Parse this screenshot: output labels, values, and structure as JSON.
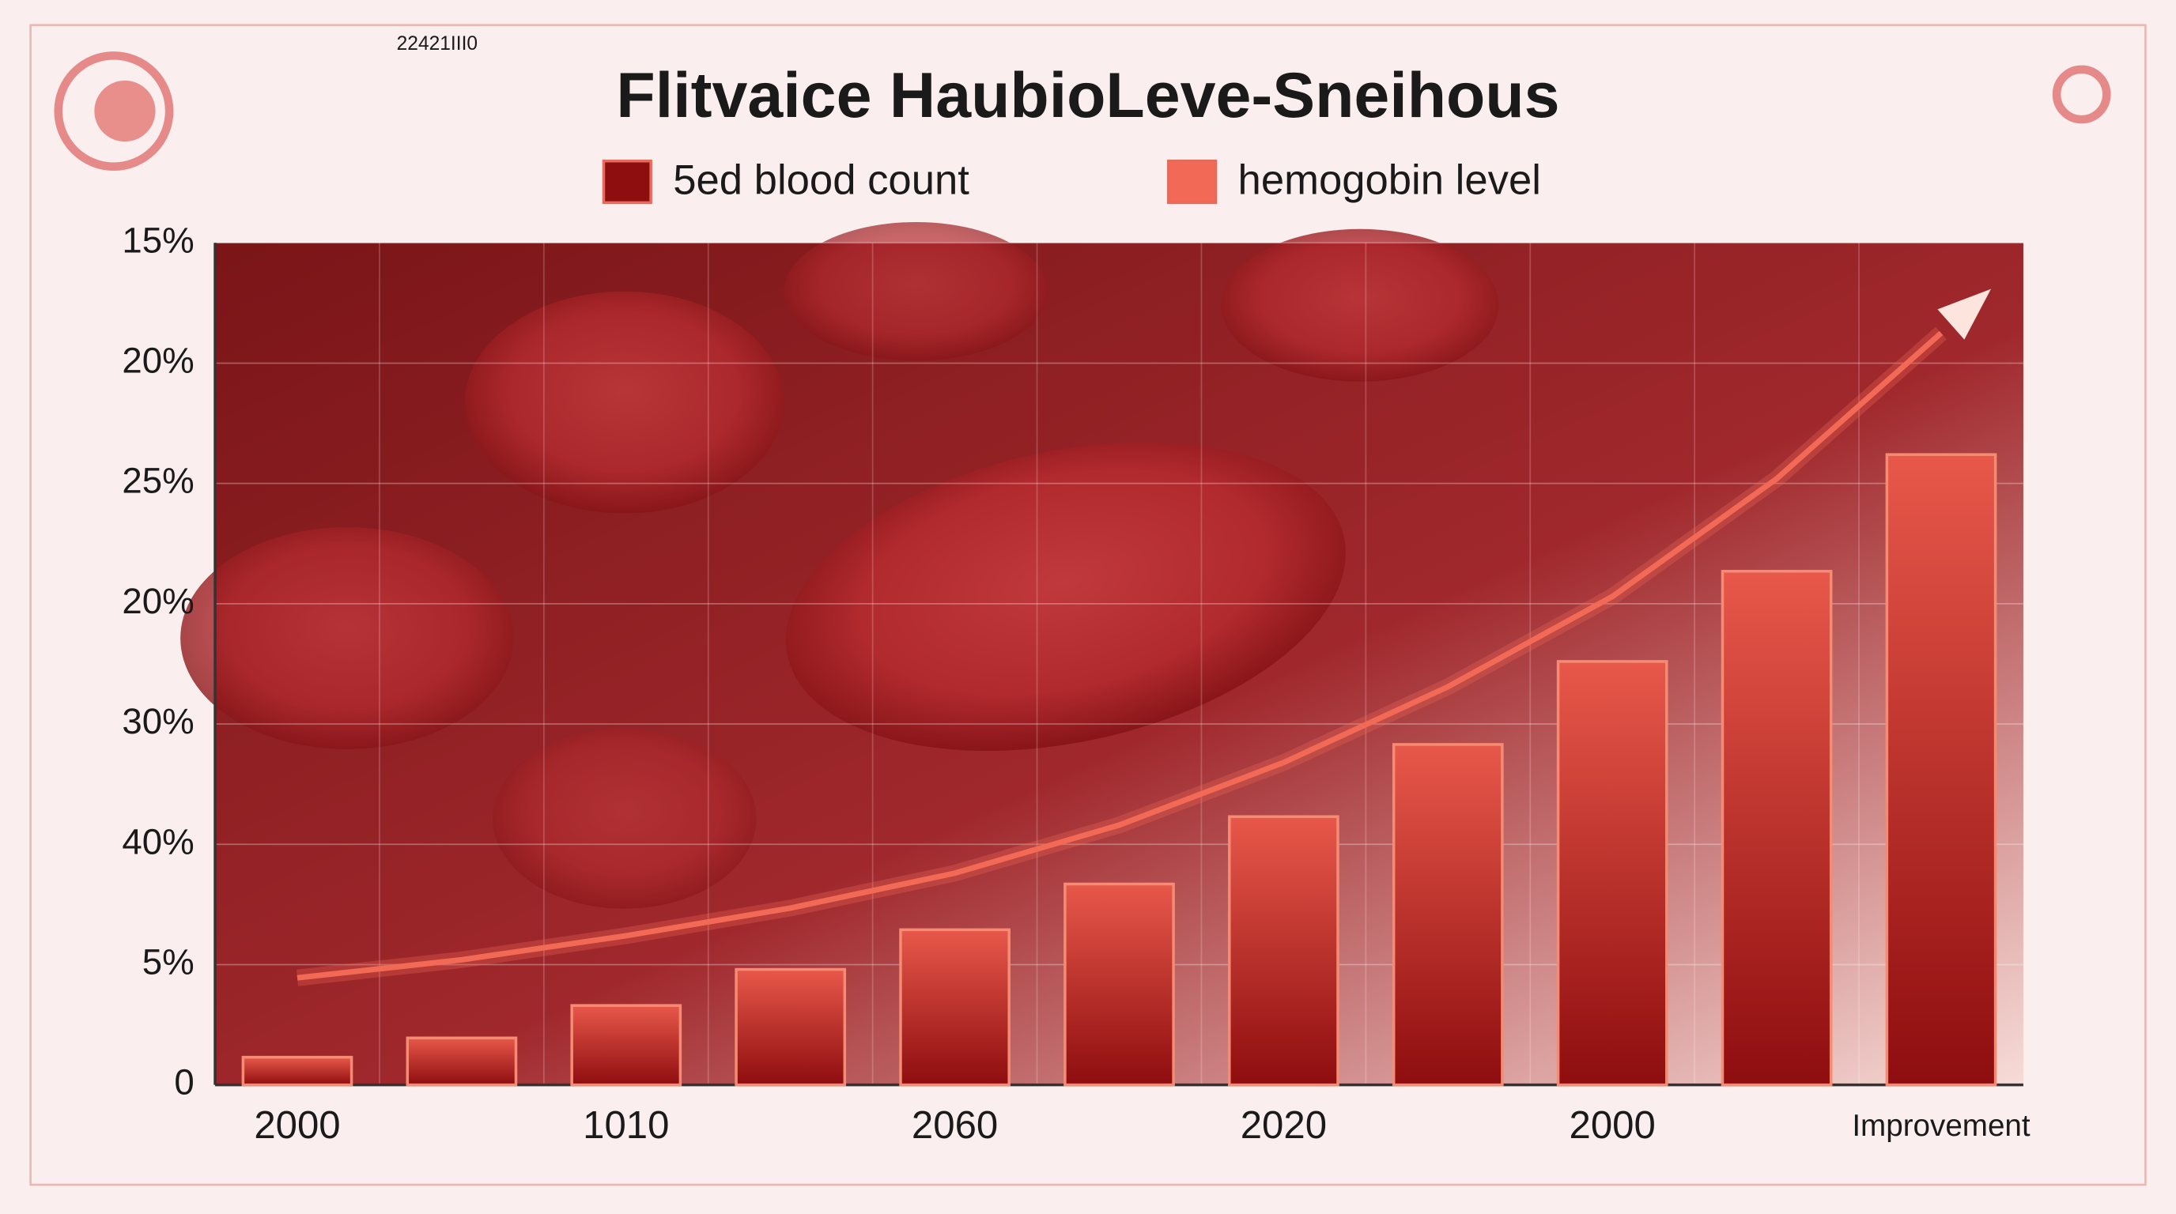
{
  "chart_data": {
    "type": "bar",
    "title": "Flitvaice HaubioLeve-Sneihous",
    "corner_code": "22421III0",
    "categories": [
      "2000",
      null,
      "1010",
      null,
      "2060",
      null,
      "2020",
      null,
      "2000",
      null,
      "Improvement"
    ],
    "y_labels": [
      "0",
      "5%",
      "40%",
      "30%",
      "20%",
      "25%",
      "20%",
      "15%"
    ],
    "ylim": [
      0,
      7
    ],
    "series": [
      {
        "name": "5ed blood  count",
        "type": "bar",
        "color": "#8e0d0f",
        "values": [
          0.23,
          0.39,
          0.66,
          0.96,
          1.29,
          1.67,
          2.23,
          2.83,
          3.52,
          4.27,
          5.24
        ]
      },
      {
        "name": "hemogobin level",
        "type": "line",
        "color": "#f26a55",
        "values": [
          0.89,
          1.04,
          1.24,
          1.47,
          1.76,
          2.16,
          2.68,
          3.31,
          4.06,
          5.04,
          6.25
        ]
      }
    ],
    "grid": true
  }
}
